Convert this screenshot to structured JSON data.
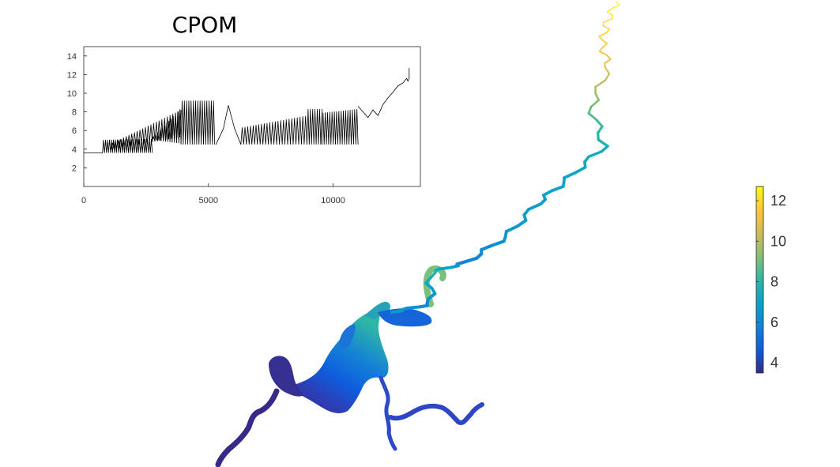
{
  "chart_data": [
    {
      "type": "line",
      "title": "CPOM",
      "xlabel": "",
      "ylabel": "",
      "xlim": [
        0,
        13500
      ],
      "ylim": [
        0,
        15
      ],
      "xticks": [
        0,
        5000,
        10000
      ],
      "yticks": [
        2,
        4,
        6,
        8,
        10,
        12,
        14
      ],
      "grid": false,
      "series": [
        {
          "color": "#000000",
          "segments": [
            {
              "mode": "line",
              "x": [
                0,
                600,
                750
              ],
              "y": [
                3.6,
                3.6,
                3.6
              ]
            },
            {
              "mode": "oscillation",
              "x_start": 750,
              "x_end": 2750,
              "low": [
                3.6,
                3.6
              ],
              "high": [
                5.0,
                5.1
              ],
              "step": 40
            },
            {
              "mode": "oscillation",
              "x_start": 1100,
              "x_end": 3900,
              "low": [
                4.0,
                5.3
              ],
              "high": [
                4.6,
                8.2
              ],
              "step": 55
            },
            {
              "mode": "oscillation",
              "x_start": 2750,
              "x_end": 3900,
              "low": [
                5.0,
                4.6
              ],
              "high": [
                5.2,
                8.4
              ],
              "step": 45
            },
            {
              "mode": "oscillation",
              "x_start": 3900,
              "x_end": 5250,
              "low": [
                4.5,
                4.5
              ],
              "high": [
                9.2,
                9.2
              ],
              "step": 45
            },
            {
              "mode": "line",
              "x": [
                5300,
                5600,
                5800,
                6050,
                6300
              ],
              "y": [
                4.5,
                6.2,
                8.7,
                6.2,
                4.5
              ]
            },
            {
              "mode": "oscillation",
              "x_start": 6300,
              "x_end": 8950,
              "low": [
                4.5,
                4.5
              ],
              "high": [
                6.3,
                7.6
              ],
              "step": 55
            },
            {
              "mode": "oscillation",
              "x_start": 8950,
              "x_end": 9550,
              "low": [
                4.5,
                4.5
              ],
              "high": [
                8.3,
                8.3
              ],
              "step": 45
            },
            {
              "mode": "oscillation",
              "x_start": 9550,
              "x_end": 11000,
              "low": [
                4.5,
                4.5
              ],
              "high": [
                7.9,
                8.3
              ],
              "step": 45
            },
            {
              "mode": "line",
              "x": [
                11000,
                11200,
                11400,
                11600,
                11800,
                12000,
                12200,
                12400,
                12600,
                12800,
                12950,
                13000,
                13050,
                13050
              ],
              "y": [
                8.6,
                8.0,
                7.4,
                8.2,
                7.6,
                8.8,
                9.5,
                10.1,
                10.8,
                11.1,
                11.6,
                11.3,
                11.6,
                12.7
              ]
            }
          ]
        }
      ]
    },
    {
      "type": "heatmap",
      "colorbar": {
        "range": [
          3.5,
          12.7
        ],
        "ticks": [
          4,
          6,
          8,
          10,
          12
        ],
        "stops": [
          "#352a87",
          "#0f5cdd",
          "#1481d6",
          "#06a4ca",
          "#2eb7a4",
          "#87bf77",
          "#d1bb59",
          "#fec832",
          "#f9fb0e"
        ]
      },
      "river_stations": [
        {
          "x": 780,
          "y": 2,
          "value": 12.5
        },
        {
          "x": 768,
          "y": 28,
          "value": 12.0
        },
        {
          "x": 762,
          "y": 55,
          "value": 11.5
        },
        {
          "x": 770,
          "y": 85,
          "value": 10.8
        },
        {
          "x": 748,
          "y": 135,
          "value": 9.0
        },
        {
          "x": 765,
          "y": 185,
          "value": 7.6
        },
        {
          "x": 720,
          "y": 225,
          "value": 7.0
        },
        {
          "x": 680,
          "y": 258,
          "value": 6.8
        },
        {
          "x": 640,
          "y": 300,
          "value": 6.5
        },
        {
          "x": 590,
          "y": 332,
          "value": 5.8
        },
        {
          "x": 545,
          "y": 345,
          "value": 7.8
        },
        {
          "x": 545,
          "y": 385,
          "value": 6.0
        },
        {
          "x": 495,
          "y": 395,
          "value": 6.8
        },
        {
          "x": 465,
          "y": 420,
          "value": 6.4
        },
        {
          "x": 420,
          "y": 480,
          "value": 5.0
        },
        {
          "x": 350,
          "y": 490,
          "value": 3.8
        },
        {
          "x": 310,
          "y": 540,
          "value": 3.6
        },
        {
          "x": 275,
          "y": 588,
          "value": 3.5
        },
        {
          "x": 490,
          "y": 520,
          "value": 4.2
        },
        {
          "x": 560,
          "y": 520,
          "value": 4.2
        },
        {
          "x": 600,
          "y": 520,
          "value": 4.0
        }
      ]
    }
  ]
}
